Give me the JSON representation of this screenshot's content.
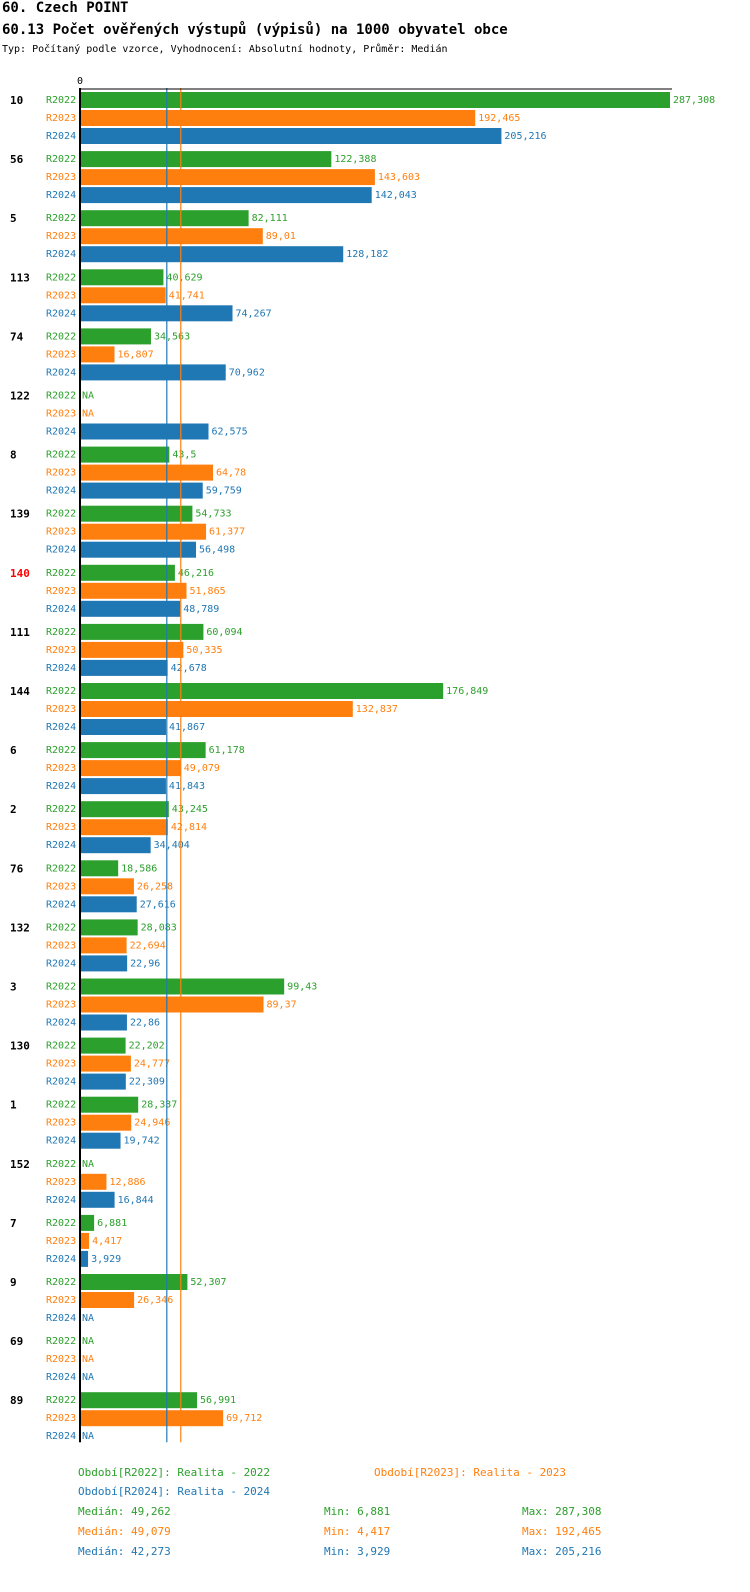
{
  "header": {
    "title": "60. Czech POINT",
    "subtitle": "60.13 Počet ověřených výstupů (výpisů) na 1000 obyvatel obce",
    "meta": "Typ: Počítaný podle vzorce, Vyhodnocení: Absolutní hodnoty, Průměr: Medián"
  },
  "colors": {
    "R2022": "#2ca02c",
    "R2023": "#ff7f0e",
    "R2024": "#1f77b4",
    "highlight": "#ff0000"
  },
  "chart_data": {
    "type": "bar",
    "orientation": "horizontal",
    "title": "60.13 Počet ověřených výstupů (výpisů) na 1000 obyvatel obce",
    "axis_zero_label": "0",
    "xlim": [
      0,
      287.308
    ],
    "series_names": [
      "R2022",
      "R2023",
      "R2024"
    ],
    "na_label": "NA",
    "highlight_category": "140",
    "categories": [
      {
        "id": "10",
        "values": [
          287.308,
          192.465,
          205.216
        ],
        "labels": [
          "287,308",
          "192,465",
          "205,216"
        ]
      },
      {
        "id": "56",
        "values": [
          122.388,
          143.603,
          142.043
        ],
        "labels": [
          "122,388",
          "143,603",
          "142,043"
        ]
      },
      {
        "id": "5",
        "values": [
          82.111,
          89.01,
          128.182
        ],
        "labels": [
          "82,111",
          "89,01",
          "128,182"
        ]
      },
      {
        "id": "113",
        "values": [
          40.629,
          41.741,
          74.267
        ],
        "labels": [
          "40,629",
          "41,741",
          "74,267"
        ]
      },
      {
        "id": "74",
        "values": [
          34.563,
          16.807,
          70.962
        ],
        "labels": [
          "34,563",
          "16,807",
          "70,962"
        ]
      },
      {
        "id": "122",
        "values": [
          null,
          null,
          62.575
        ],
        "labels": [
          "NA",
          "NA",
          "62,575"
        ]
      },
      {
        "id": "8",
        "values": [
          43.5,
          64.78,
          59.759
        ],
        "labels": [
          "43,5",
          "64,78",
          "59,759"
        ]
      },
      {
        "id": "139",
        "values": [
          54.733,
          61.377,
          56.498
        ],
        "labels": [
          "54,733",
          "61,377",
          "56,498"
        ]
      },
      {
        "id": "140",
        "values": [
          46.216,
          51.865,
          48.789
        ],
        "labels": [
          "46,216",
          "51,865",
          "48,789"
        ]
      },
      {
        "id": "111",
        "values": [
          60.094,
          50.335,
          42.678
        ],
        "labels": [
          "60,094",
          "50,335",
          "42,678"
        ]
      },
      {
        "id": "144",
        "values": [
          176.849,
          132.837,
          41.867
        ],
        "labels": [
          "176,849",
          "132,837",
          "41,867"
        ]
      },
      {
        "id": "6",
        "values": [
          61.178,
          49.079,
          41.843
        ],
        "labels": [
          "61,178",
          "49,079",
          "41,843"
        ]
      },
      {
        "id": "2",
        "values": [
          43.245,
          42.814,
          34.404
        ],
        "labels": [
          "43,245",
          "42,814",
          "34,404"
        ]
      },
      {
        "id": "76",
        "values": [
          18.586,
          26.258,
          27.616
        ],
        "labels": [
          "18,586",
          "26,258",
          "27,616"
        ]
      },
      {
        "id": "132",
        "values": [
          28.083,
          22.694,
          22.96
        ],
        "labels": [
          "28,083",
          "22,694",
          "22,96"
        ]
      },
      {
        "id": "3",
        "values": [
          99.43,
          89.37,
          22.86
        ],
        "labels": [
          "99,43",
          "89,37",
          "22,86"
        ]
      },
      {
        "id": "130",
        "values": [
          22.202,
          24.777,
          22.309
        ],
        "labels": [
          "22,202",
          "24,777",
          "22,309"
        ]
      },
      {
        "id": "1",
        "values": [
          28.337,
          24.946,
          19.742
        ],
        "labels": [
          "28,337",
          "24,946",
          "19,742"
        ]
      },
      {
        "id": "152",
        "values": [
          null,
          12.886,
          16.844
        ],
        "labels": [
          "NA",
          "12,886",
          "16,844"
        ]
      },
      {
        "id": "7",
        "values": [
          6.881,
          4.417,
          3.929
        ],
        "labels": [
          "6,881",
          "4,417",
          "3,929"
        ]
      },
      {
        "id": "9",
        "values": [
          52.307,
          26.346,
          null
        ],
        "labels": [
          "52,307",
          "26,346",
          "NA"
        ]
      },
      {
        "id": "69",
        "values": [
          null,
          null,
          null
        ],
        "labels": [
          "NA",
          "NA",
          "NA"
        ]
      },
      {
        "id": "89",
        "values": [
          56.991,
          69.712,
          null
        ],
        "labels": [
          "56,991",
          "69,712",
          "NA"
        ]
      }
    ],
    "median_lines": [
      {
        "series": "R2023",
        "value": 49.079
      },
      {
        "series": "R2024",
        "value": 42.273
      }
    ]
  },
  "legend": {
    "r2022": "Období[R2022]: Realita - 2022",
    "r2023": "Období[R2023]: Realita - 2023",
    "r2024": "Období[R2024]: Realita - 2024"
  },
  "stats": [
    {
      "median": "Medián: 49,262",
      "min": "Min: 6,881",
      "max": "Max: 287,308"
    },
    {
      "median": "Medián: 49,079",
      "min": "Min: 4,417",
      "max": "Max: 192,465"
    },
    {
      "median": "Medián: 42,273",
      "min": "Min: 3,929",
      "max": "Max: 205,216"
    }
  ]
}
